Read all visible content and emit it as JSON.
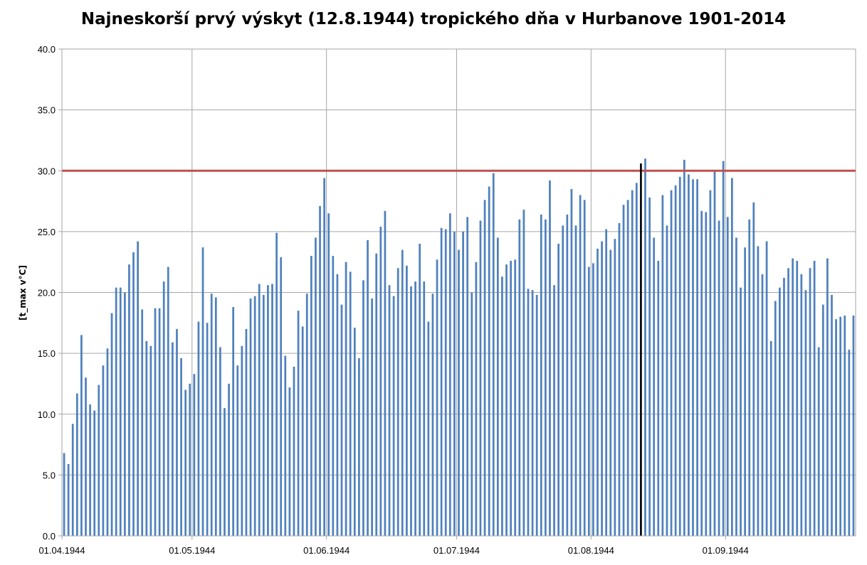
{
  "colors": {
    "bar": "#4f81bd",
    "threshold": "#c0504d",
    "marker": "#000000",
    "grid": "#a6a6a6"
  },
  "chart_data": {
    "type": "bar",
    "title": "Najneskorší prvý výskyt (12.8.1944) tropického dňa v Hurbanove 1901-2014",
    "ylabel": "[t_max v°C]",
    "xlabel": "",
    "ylim": [
      0,
      40
    ],
    "yticks": [
      "0.0",
      "5.0",
      "10.0",
      "15.0",
      "20.0",
      "25.0",
      "30.0",
      "35.0",
      "40.0"
    ],
    "xticks": [
      "01.04.1944",
      "01.05.1944",
      "01.06.1944",
      "01.07.1944",
      "01.08.1944",
      "01.09.1944"
    ],
    "start_date": "01.04.1944",
    "threshold": 30,
    "marker_date": "12.08.1944",
    "grid": true,
    "values": [
      6.8,
      5.9,
      9.2,
      11.7,
      16.5,
      13.0,
      10.8,
      10.3,
      12.4,
      14.0,
      15.4,
      18.3,
      20.4,
      20.4,
      20.0,
      22.3,
      23.3,
      24.2,
      18.6,
      16.0,
      15.6,
      18.7,
      18.7,
      20.9,
      22.1,
      15.9,
      17.0,
      14.6,
      12.0,
      12.5,
      13.3,
      17.6,
      23.7,
      17.5,
      19.9,
      19.6,
      15.5,
      10.5,
      12.5,
      18.8,
      14.0,
      15.6,
      17.0,
      19.5,
      19.7,
      20.7,
      19.8,
      20.6,
      20.7,
      24.9,
      22.9,
      14.8,
      12.2,
      13.9,
      18.5,
      17.2,
      19.9,
      23.0,
      24.5,
      27.1,
      29.4,
      26.5,
      23.0,
      21.5,
      19.0,
      22.5,
      21.7,
      17.1,
      14.6,
      21.0,
      24.3,
      19.5,
      23.2,
      25.4,
      26.7,
      20.6,
      19.7,
      22.0,
      23.5,
      22.2,
      20.5,
      20.9,
      24.0,
      20.9,
      17.6,
      19.9,
      22.7,
      25.3,
      25.2,
      26.5,
      25.0,
      23.5,
      25.0,
      26.2,
      20.0,
      22.5,
      25.9,
      27.6,
      28.7,
      29.8,
      24.5,
      21.3,
      22.3,
      22.6,
      22.7,
      26.0,
      26.8,
      20.3,
      20.2,
      19.8,
      26.4,
      26.0,
      29.2,
      20.6,
      24.0,
      25.5,
      26.4,
      28.5,
      25.5,
      28.0,
      27.6,
      22.1,
      22.4,
      23.6,
      24.2,
      25.2,
      23.5,
      24.4,
      25.7,
      27.2,
      27.6,
      28.4,
      29.0,
      30.6,
      31.0,
      27.8,
      24.5,
      22.6,
      28.0,
      25.5,
      28.4,
      28.8,
      29.5,
      30.9,
      29.7,
      29.3,
      29.3,
      26.7,
      26.6,
      28.4,
      30.0,
      25.9,
      30.8,
      26.2,
      29.4,
      24.5,
      20.4,
      23.7,
      26.0,
      27.4,
      23.8,
      21.5,
      24.2,
      16.0,
      19.3,
      20.4,
      21.2,
      22.0,
      22.8,
      22.6,
      21.5,
      20.2,
      22.0,
      22.6,
      15.5,
      19.0,
      22.8,
      19.8,
      17.8,
      18.0,
      18.1,
      15.3,
      18.1
    ]
  }
}
